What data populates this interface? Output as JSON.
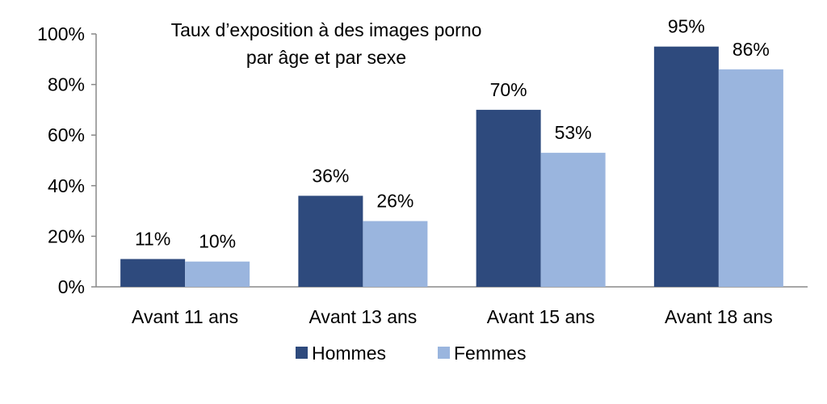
{
  "chart_data": {
    "type": "bar",
    "title_lines": [
      "Taux d’exposition à des images porno",
      "par âge et par sexe"
    ],
    "xlabel": "",
    "ylabel": "",
    "ylim": [
      0,
      100
    ],
    "yticks": [
      0,
      20,
      40,
      60,
      80,
      100
    ],
    "ytick_labels": [
      "0%",
      "20%",
      "40%",
      "60%",
      "80%",
      "100%"
    ],
    "grid": false,
    "legend_position": "bottom",
    "categories": [
      "Avant 11 ans",
      "Avant 13 ans",
      "Avant 15 ans",
      "Avant 18 ans"
    ],
    "series": [
      {
        "name": "Hommes",
        "color": "#2e4a7d",
        "values": [
          11,
          36,
          70,
          95
        ],
        "labels": [
          "11%",
          "36%",
          "70%",
          "95%"
        ]
      },
      {
        "name": "Femmes",
        "color": "#9ab5de",
        "values": [
          10,
          26,
          53,
          86
        ],
        "labels": [
          "10%",
          "26%",
          "53%",
          "86%"
        ]
      }
    ]
  }
}
